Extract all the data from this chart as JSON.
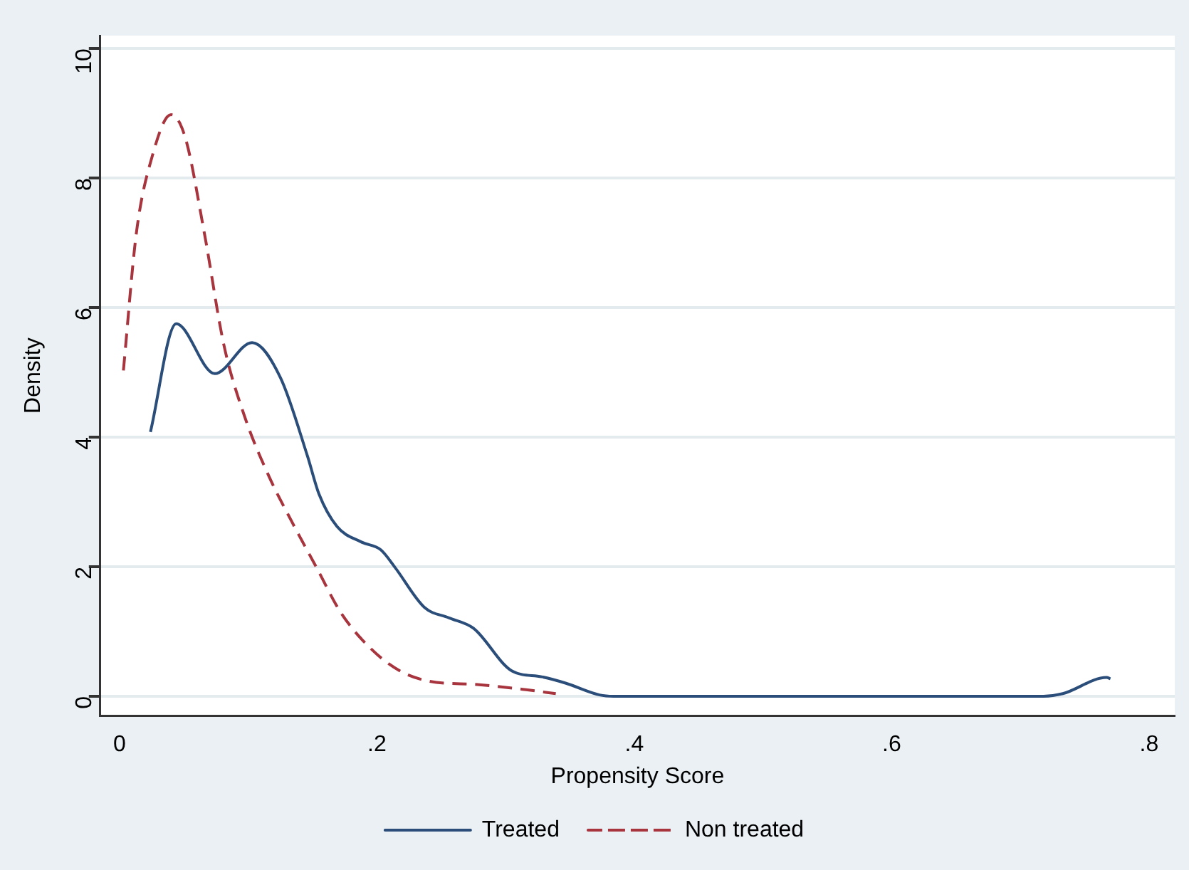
{
  "chart_data": {
    "type": "line",
    "xlabel": "Propensity Score",
    "ylabel": "Density",
    "xlim": [
      -0.015,
      0.82
    ],
    "ylim": [
      -0.3,
      10.2
    ],
    "xticks": [
      0,
      {
        "value": 0.2,
        "label": ".2"
      },
      {
        "value": 0.4,
        "label": ".4"
      },
      {
        "value": 0.6,
        "label": ".6"
      },
      {
        "value": 0.8,
        "label": ".8"
      }
    ],
    "yticks": [
      0,
      2,
      4,
      6,
      8,
      10
    ],
    "grid": "y",
    "legend": "bottom",
    "marker": "none",
    "series": [
      {
        "name": "Treated",
        "color": "#2b4d7a",
        "line_style": "solid",
        "x": [
          0.024,
          0.044,
          0.074,
          0.103,
          0.125,
          0.146,
          0.155,
          0.169,
          0.188,
          0.203,
          0.214,
          0.237,
          0.256,
          0.275,
          0.305,
          0.328,
          0.347,
          0.373,
          0.384,
          0.718,
          0.733,
          0.767,
          0.77
        ],
        "values": [
          4.08,
          5.75,
          4.98,
          5.46,
          4.92,
          3.71,
          3.12,
          2.62,
          2.38,
          2.26,
          1.99,
          1.37,
          1.21,
          1.05,
          0.39,
          0.3,
          0.2,
          0.02,
          0,
          0,
          0.04,
          0.29,
          0.27
        ]
      },
      {
        "name": "Non treated",
        "color": "#a8343e",
        "line_style": "dashed",
        "x": [
          0.003,
          0.013,
          0.025,
          0.04,
          0.051,
          0.066,
          0.081,
          0.097,
          0.116,
          0.134,
          0.153,
          0.172,
          0.195,
          0.218,
          0.241,
          0.278,
          0.316,
          0.339
        ],
        "values": [
          5.03,
          7.14,
          8.31,
          8.98,
          8.63,
          7.14,
          5.43,
          4.33,
          3.4,
          2.69,
          1.99,
          1.29,
          0.74,
          0.39,
          0.23,
          0.18,
          0.1,
          0.04
        ]
      }
    ]
  }
}
